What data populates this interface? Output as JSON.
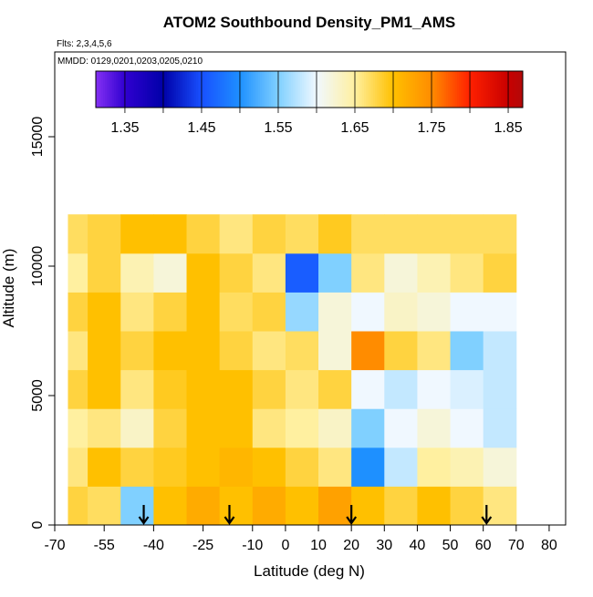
{
  "chart_data": {
    "type": "heatmap",
    "title": "ATOM2 Southbound Density_PM1_AMS",
    "subtitle": "Flts: 2,3,4,5,6",
    "annotation": "MMDD: 0129,0201,0203,0205,0210",
    "x_label": "Latitude (deg N)",
    "y_label": "Altitude (m)",
    "xlim": [
      -70,
      85
    ],
    "ylim": [
      0,
      18275
    ],
    "xticks": [
      -70,
      -55,
      -40,
      -25,
      -10,
      0,
      10,
      20,
      30,
      40,
      50,
      60,
      70,
      80
    ],
    "yticks": [
      0,
      5000,
      10000,
      15000
    ],
    "xbins": [
      -66,
      -60,
      -50,
      -40,
      -30,
      -20,
      -10,
      0,
      10,
      20,
      30,
      40,
      50,
      60,
      70
    ],
    "ybins": [
      0,
      1500,
      3000,
      4500,
      6000,
      7500,
      9000,
      10500,
      12000
    ],
    "values": [
      [
        1.68,
        1.67,
        1.55,
        1.7,
        1.72,
        1.7,
        1.72,
        1.7,
        1.73,
        1.7,
        1.68,
        1.7,
        1.68,
        1.66
      ],
      [
        1.66,
        1.7,
        1.68,
        1.69,
        1.7,
        1.71,
        1.7,
        1.68,
        1.66,
        1.5,
        1.58,
        1.65,
        1.64,
        1.62
      ],
      [
        1.65,
        1.66,
        1.63,
        1.68,
        1.7,
        1.7,
        1.66,
        1.65,
        1.63,
        1.55,
        1.6,
        1.62,
        1.6,
        1.58
      ],
      [
        1.68,
        1.7,
        1.66,
        1.69,
        1.7,
        1.7,
        1.68,
        1.66,
        1.68,
        1.6,
        1.58,
        1.6,
        1.59,
        1.58
      ],
      [
        1.66,
        1.7,
        1.68,
        1.7,
        1.7,
        1.68,
        1.66,
        1.67,
        1.62,
        1.75,
        1.68,
        1.66,
        1.55,
        1.58
      ],
      [
        1.68,
        1.7,
        1.66,
        1.68,
        1.7,
        1.67,
        1.68,
        1.56,
        1.62,
        1.6,
        1.63,
        1.62,
        1.6,
        1.6
      ],
      [
        1.65,
        1.68,
        1.64,
        1.62,
        1.7,
        1.68,
        1.66,
        1.46,
        1.55,
        1.66,
        1.62,
        1.64,
        1.66,
        1.68
      ],
      [
        1.67,
        1.68,
        1.7,
        1.7,
        1.68,
        1.66,
        1.68,
        1.67,
        1.69,
        1.67,
        1.67,
        1.67,
        1.67,
        1.67
      ]
    ],
    "colorbar_lim": [
      1.312,
      1.869
    ],
    "colorbar_ticks": [
      1.35,
      1.45,
      1.55,
      1.65,
      1.75,
      1.85
    ],
    "color_stops": [
      1.3,
      1.35,
      1.4,
      1.45,
      1.5,
      1.55,
      1.6,
      1.65,
      1.7,
      1.75,
      1.8,
      1.85,
      1.9
    ],
    "colors": [
      "#a040ff",
      "#3000d0",
      "#0000a8",
      "#1850ff",
      "#1e90ff",
      "#80d0ff",
      "#f0f8ff",
      "#fff0a0",
      "#ffc000",
      "#ff8c00",
      "#ff2000",
      "#c80000",
      "#901818"
    ],
    "markers": [
      -43,
      -17,
      20,
      61
    ]
  }
}
